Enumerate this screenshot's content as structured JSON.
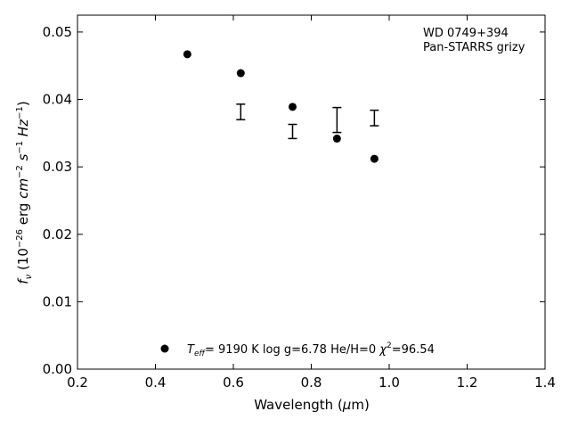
{
  "chart_data": {
    "type": "scatter",
    "x_range": [
      0.2,
      1.4
    ],
    "y_range": [
      0.0,
      0.0525
    ],
    "x_ticks": [
      "0.2",
      "0.4",
      "0.6",
      "0.8",
      "1.0",
      "1.2",
      "1.4"
    ],
    "y_ticks": [
      "0.00",
      "0.01",
      "0.02",
      "0.03",
      "0.04",
      "0.05"
    ],
    "xlabel": {
      "pre": "Wavelength (",
      "greek": "μ",
      "post": "m)"
    },
    "ylabel": {
      "f": "f",
      "nu": "ν",
      "open": " (10",
      "exp1": "−26",
      "mid1": " erg ",
      "cm": "cm",
      "exp2": "−2",
      "s": " s",
      "exp3": "−1",
      "hz": " Hz",
      "exp4": "−1",
      "close": ")"
    },
    "annotation": {
      "line1": "WD 0749+394",
      "line2": "Pan-STARRS grizy"
    },
    "legend": {
      "teff_t": "T",
      "teff_sub": "eff",
      "teff_value": "=  9190 K  log g=6.78  He/H=0  ",
      "chi": "χ",
      "chi_sup": "2",
      "chi_value": "=96.54"
    },
    "series": [
      {
        "kind": "model",
        "marker": "circle",
        "x": [
          0.482,
          0.619,
          0.752,
          0.866,
          0.962
        ],
        "y": [
          0.0467,
          0.0439,
          0.0389,
          0.0342,
          0.0312
        ]
      },
      {
        "kind": "observed",
        "marker": "errorbar",
        "x": [
          0.619,
          0.752,
          0.866,
          0.962
        ],
        "y_low": [
          0.037,
          0.0342,
          0.0351,
          0.0361
        ],
        "y_high": [
          0.0393,
          0.0363,
          0.0388,
          0.0384
        ]
      }
    ],
    "colors": {
      "marker": "#000000",
      "axis": "#000000"
    }
  }
}
